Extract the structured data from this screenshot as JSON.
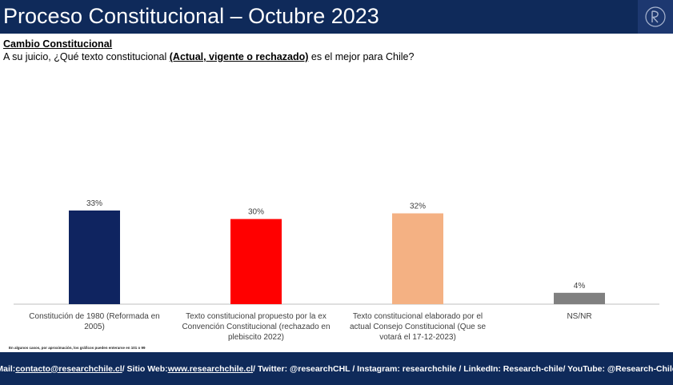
{
  "header": {
    "title": "Proceso Constitucional – Octubre 2023"
  },
  "subtitle": "Cambio Constitucional",
  "question": {
    "prefix": "A su juicio, ¿Qué texto constitucional ",
    "emphasis": "(Actual, vigente o rechazado)",
    "suffix": " es el mejor para Chile?"
  },
  "chart_data": {
    "type": "bar",
    "categories": [
      "Constitución de 1980 (Reformada en 2005)",
      "Texto constitucional propuesto por la ex Convención Constitucional (rechazado en plebiscito 2022)",
      "Texto constitucional elaborado por el actual Consejo Constitucional (Que se votará el 17-12-2023)",
      "NS/NR"
    ],
    "values": [
      33,
      30,
      32,
      4
    ],
    "value_labels": [
      "33%",
      "30%",
      "32%",
      "4%"
    ],
    "colors": [
      "#0f2460",
      "#ff0000",
      "#f4b183",
      "#808080"
    ],
    "ylim": [
      0,
      40
    ],
    "grid": false,
    "legend": "none"
  },
  "category_labels": [
    "Constitución de 1980 (Reformada en 2005)",
    "Texto constitucional propuesto por la ex Convención Constitucional (rechazado en plebiscito 2022)",
    "Texto constitucional elaborado por el actual Consejo Constitucional (Que se votará el 17-12-2023)",
    "NS/NR"
  ],
  "note": "En algunos casos, por aproximación, los gráficos pueden enterarse en 101 o 99",
  "footer": {
    "mail_label": "Mail: ",
    "mail": "contacto@researchchile.cl",
    "web_label": " / Sitio Web: ",
    "web": "www.researchchile.cl",
    "rest": " / Twitter: @researchCHL / Instagram: researchchile / LinkedIn: Research-chile/ YouTube: @Research-Chile"
  }
}
